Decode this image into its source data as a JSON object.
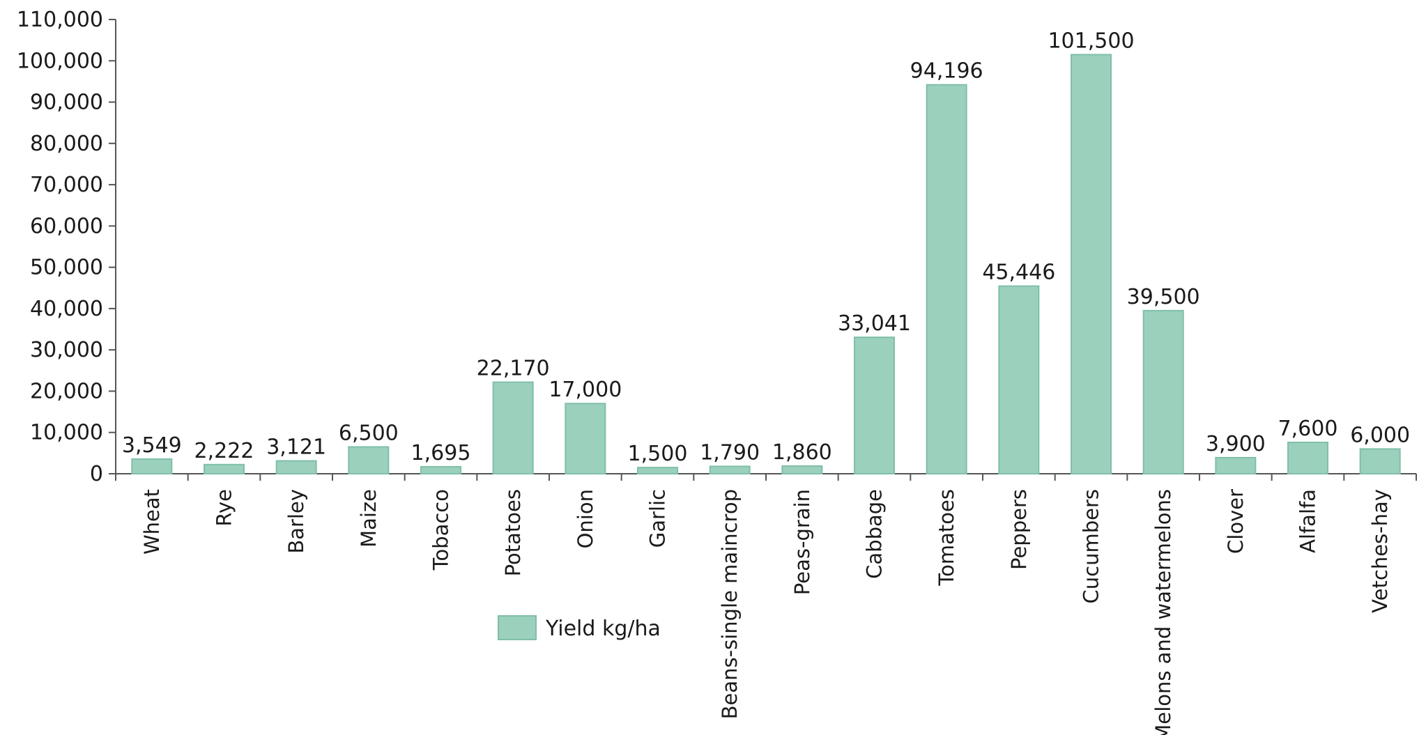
{
  "chart_data": {
    "type": "bar",
    "categories": [
      "Wheat",
      "Rye",
      "Barley",
      "Maize",
      "Tobacco",
      "Potatoes",
      "Onion",
      "Garlic",
      "Beans-single maincrop",
      "Peas-grain",
      "Cabbage",
      "Tomatoes",
      "Peppers",
      "Cucumbers",
      "Melons and watermelons",
      "Clover",
      "Alfalfa",
      "Vetches-hay"
    ],
    "series": [
      {
        "name": "Yield kg/ha",
        "values": [
          3549,
          2222,
          3121,
          6500,
          1695,
          22170,
          17000,
          1500,
          1790,
          1860,
          33041,
          94196,
          45446,
          101500,
          39500,
          3900,
          7600,
          6000
        ],
        "value_labels": [
          "3,549",
          "2,222",
          "3,121",
          "6,500",
          "1,695",
          "22,170",
          "17,000",
          "1,500",
          "1,790",
          "1,860",
          "33,041",
          "94,196",
          "45,446",
          "101,500",
          "39,500",
          "3,900",
          "7,600",
          "6,000"
        ]
      }
    ],
    "ylim": [
      0,
      110000
    ],
    "yticks": [
      0,
      10000,
      20000,
      30000,
      40000,
      50000,
      60000,
      70000,
      80000,
      90000,
      100000,
      110000
    ],
    "ytick_labels": [
      "0",
      "10,000",
      "20,000",
      "30,000",
      "40,000",
      "50,000",
      "60,000",
      "70,000",
      "80,000",
      "90,000",
      "100,000",
      "110,000"
    ],
    "grid": false,
    "legend_position": "bottom-center",
    "colors": {
      "bar_fill": "#9bd0bd",
      "bar_stroke": "#7fbfa8",
      "axis": "#555555"
    }
  }
}
